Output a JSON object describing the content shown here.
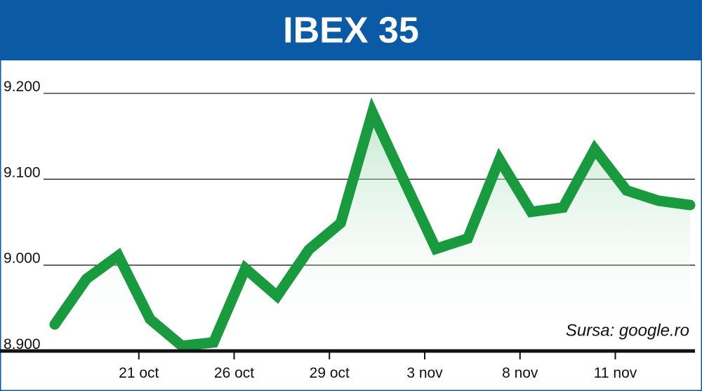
{
  "chart_data": {
    "type": "line",
    "title": "IBEX 35",
    "source": "Sursa: google.ro",
    "categories": [
      null,
      null,
      null,
      "21 oct",
      null,
      null,
      "26 oct",
      null,
      null,
      "29 oct",
      null,
      null,
      "3 nov",
      null,
      null,
      "8 nov",
      null,
      null,
      "11 nov",
      null,
      null
    ],
    "series": [
      {
        "name": "IBEX 35",
        "color": "#1a9a3e",
        "values": [
          8931,
          8984,
          9011,
          8937,
          8906,
          8910,
          8996,
          8964,
          9018,
          9049,
          9178,
          9098,
          9019,
          9031,
          9123,
          9062,
          9067,
          9135,
          9087,
          9075,
          9070
        ]
      }
    ],
    "ylim": [
      8900,
      9200
    ],
    "yticks": [
      {
        "value": 8900,
        "label": "8.900"
      },
      {
        "value": 9000,
        "label": "9.000"
      },
      {
        "value": 9100,
        "label": "9.100"
      },
      {
        "value": 9200,
        "label": "9.200"
      }
    ],
    "grid": true
  }
}
